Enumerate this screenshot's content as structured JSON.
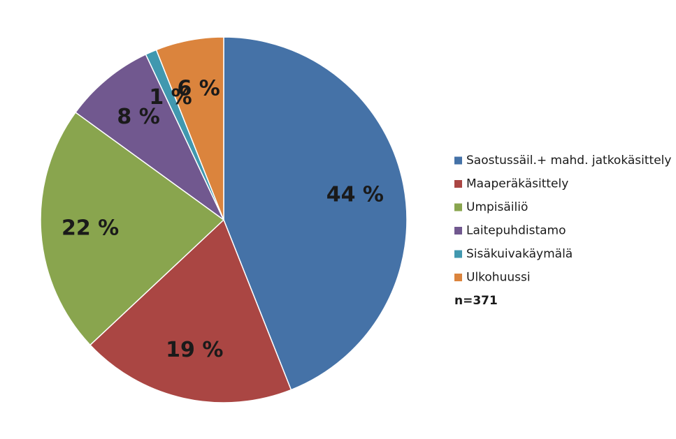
{
  "chart_data": {
    "type": "pie",
    "categories": [
      "Saostussäil.+ mahd. jatkokäsittely",
      "Maaperäkäsittely",
      "Umpisäiliö",
      "Laitepuhdistamo",
      "Sisäkuivakäymälä",
      "Ulkohuussi"
    ],
    "values": [
      44,
      19,
      22,
      8,
      1,
      6
    ],
    "labels": [
      "44 %",
      "19 %",
      "22 %",
      "8 %",
      "1 %",
      "6 %"
    ],
    "colors": [
      "#4572A7",
      "#AA4643",
      "#89A54E",
      "#71588F",
      "#4198AF",
      "#DB843D"
    ],
    "legend_position": "right",
    "note": "n=371"
  }
}
